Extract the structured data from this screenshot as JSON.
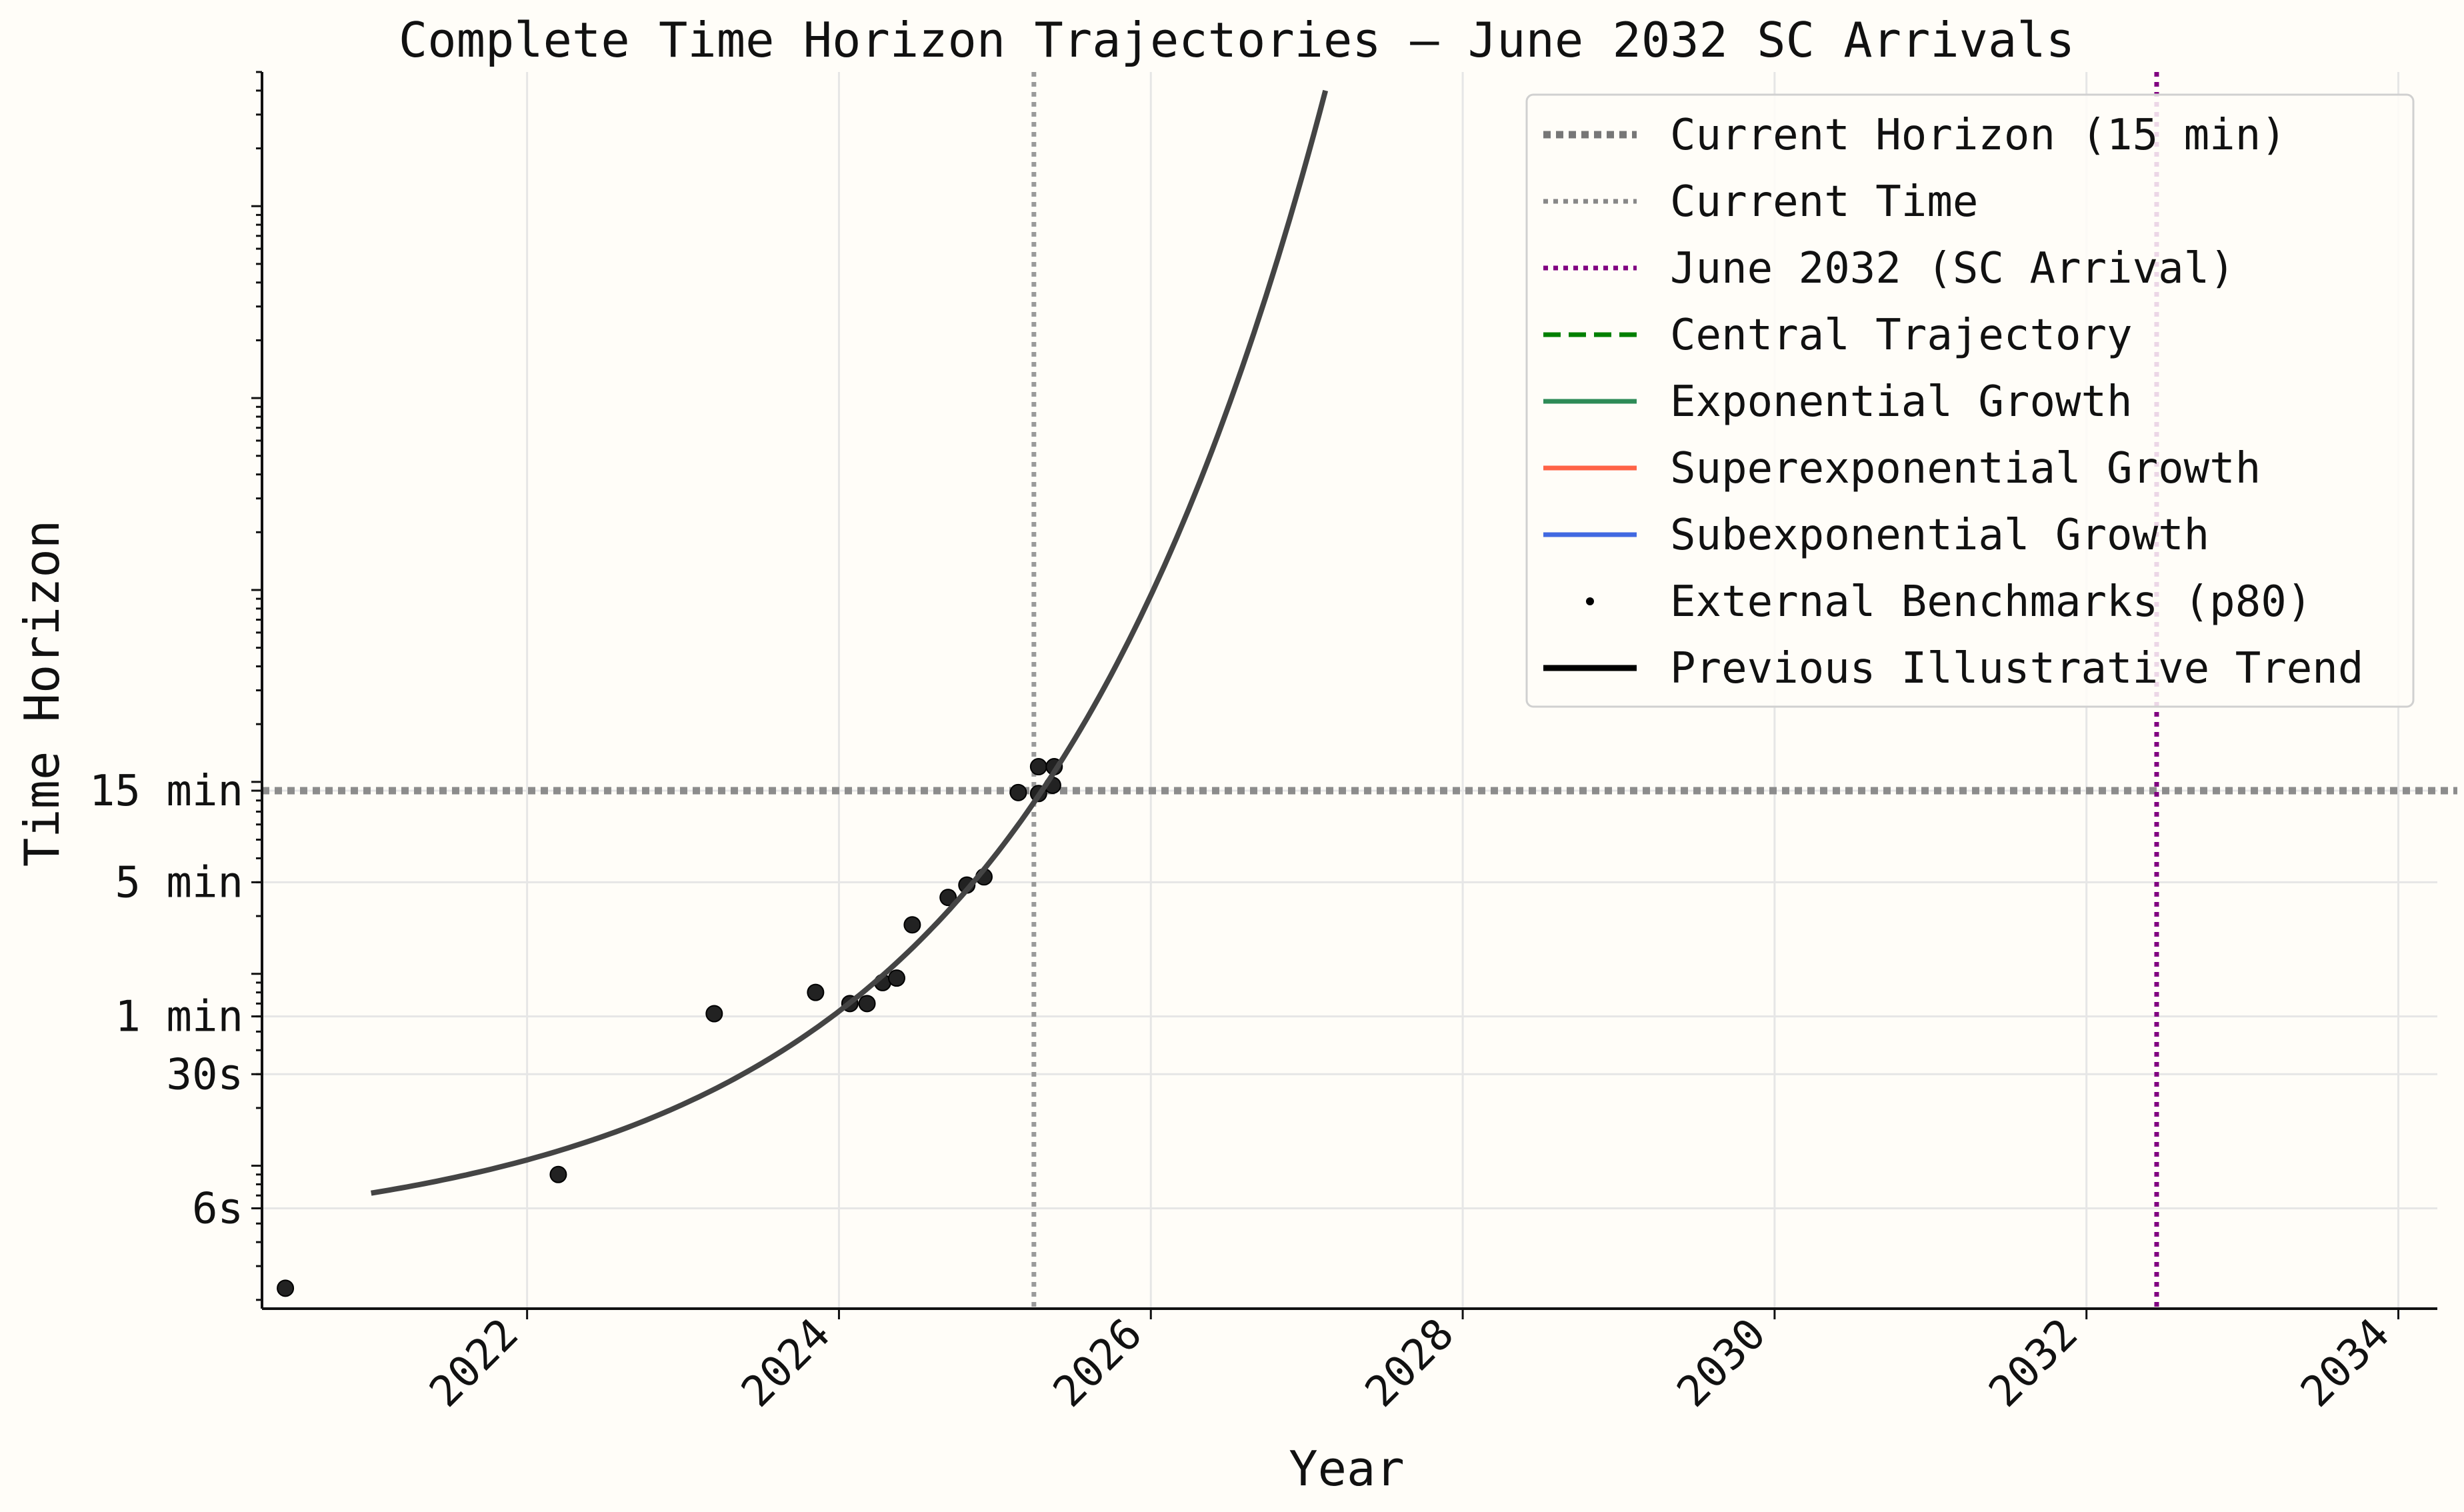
{
  "chart_data": {
    "type": "scatter",
    "title": "Complete Time Horizon Trajectories — June 2032 SC Arrivals",
    "xlabel": "Year",
    "ylabel": "Time Horizon",
    "y_scale": "log",
    "grid": true,
    "legend_placement": "top-right",
    "xlim": [
      2020.3,
      2034.25
    ],
    "ylim_seconds": [
      1.8,
      5000000
    ],
    "x_ticks": [
      {
        "value": 2022,
        "label": "2022"
      },
      {
        "value": 2024,
        "label": "2024"
      },
      {
        "value": 2026,
        "label": "2026"
      },
      {
        "value": 2028,
        "label": "2028"
      },
      {
        "value": 2030,
        "label": "2030"
      },
      {
        "value": 2032,
        "label": "2032"
      },
      {
        "value": 2034,
        "label": "2034"
      }
    ],
    "y_ticks": [
      {
        "value_seconds": 6,
        "label": "6s"
      },
      {
        "value_seconds": 30,
        "label": "30s"
      },
      {
        "value_seconds": 60,
        "label": "1 min"
      },
      {
        "value_seconds": 300,
        "label": "5 min"
      },
      {
        "value_seconds": 900,
        "label": "15 min"
      }
    ],
    "reference_lines": {
      "current_horizon_seconds": 900,
      "current_time_year": 2025.25,
      "sc_arrival_year": 2032.45
    },
    "series": [
      {
        "name": "External Benchmarks (p80)",
        "kind": "points",
        "color": "#222222",
        "points": [
          {
            "x": 2020.45,
            "y": 2.3
          },
          {
            "x": 2022.2,
            "y": 9
          },
          {
            "x": 2023.2,
            "y": 62
          },
          {
            "x": 2023.85,
            "y": 80
          },
          {
            "x": 2024.07,
            "y": 70
          },
          {
            "x": 2024.18,
            "y": 70
          },
          {
            "x": 2024.28,
            "y": 90
          },
          {
            "x": 2024.37,
            "y": 95
          },
          {
            "x": 2024.47,
            "y": 180
          },
          {
            "x": 2024.7,
            "y": 250
          },
          {
            "x": 2024.82,
            "y": 290
          },
          {
            "x": 2024.93,
            "y": 320
          },
          {
            "x": 2025.15,
            "y": 880
          },
          {
            "x": 2025.28,
            "y": 1200
          },
          {
            "x": 2025.38,
            "y": 1200
          },
          {
            "x": 2025.28,
            "y": 870
          },
          {
            "x": 2025.37,
            "y": 960
          }
        ]
      },
      {
        "name": "Previous Illustrative Trend",
        "kind": "curve",
        "color": "#444444",
        "x_start": 2021.0,
        "x_end": 2027.12,
        "y_start_seconds": 7.2,
        "y_end_seconds": 4000000
      }
    ],
    "legend": [
      {
        "label": "Current Horizon (15 min)",
        "style": "dotted-thick",
        "color": "#777777"
      },
      {
        "label": "Current Time",
        "style": "dotted",
        "color": "#888888"
      },
      {
        "label": "June 2032 (SC Arrival)",
        "style": "dotted",
        "color": "#800080"
      },
      {
        "label": "Central Trajectory",
        "style": "dashed",
        "color": "#008000"
      },
      {
        "label": "Exponential Growth",
        "style": "solid",
        "color": "#2e8b57"
      },
      {
        "label": "Superexponential Growth",
        "style": "solid",
        "color": "#ff6347"
      },
      {
        "label": "Subexponential Growth",
        "style": "solid",
        "color": "#4169e1"
      },
      {
        "label": "External Benchmarks (p80)",
        "style": "dot",
        "color": "#000000"
      },
      {
        "label": "Previous Illustrative Trend",
        "style": "solid-thick",
        "color": "#000000"
      }
    ]
  }
}
